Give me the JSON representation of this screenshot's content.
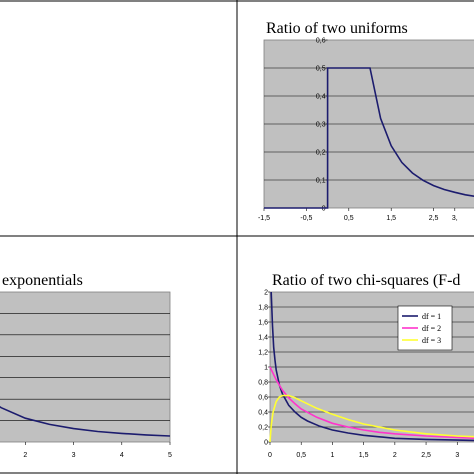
{
  "chart_data": [
    {
      "panel": "top-left",
      "type": "line",
      "title": "",
      "series": []
    },
    {
      "panel": "top-right",
      "type": "line",
      "title": "Ratio of two uniforms",
      "xlim": [
        -1.5,
        3.5
      ],
      "ylim": [
        0,
        0.6
      ],
      "x_ticks": [
        "-1,5",
        "-0,5",
        "0,5",
        "1,5",
        "2,5",
        "3,"
      ],
      "y_ticks": [
        "0",
        "0,1",
        "0,2",
        "0,3",
        "0,4",
        "0,5",
        "0,6"
      ],
      "grid": true,
      "series": [
        {
          "color": "#1c1c6e",
          "x": [
            -1.5,
            0,
            0,
            1,
            1.25,
            1.5,
            1.75,
            2,
            2.25,
            2.5,
            2.75,
            3,
            3.25,
            3.5
          ],
          "y": [
            0,
            0,
            0.5,
            0.5,
            0.32,
            0.222,
            0.163,
            0.125,
            0.099,
            0.08,
            0.066,
            0.056,
            0.047,
            0.041
          ]
        }
      ]
    },
    {
      "panel": "bottom-left",
      "type": "line",
      "title": "exponentials",
      "xlim": [
        1.35,
        5
      ],
      "ylim": [
        0,
        0.7
      ],
      "x_ticks": [
        "2",
        "3",
        "4",
        "5"
      ],
      "grid": true,
      "series": [
        {
          "color": "#1c1c6e",
          "x": [
            1.35,
            1.5,
            2,
            2.5,
            3,
            3.5,
            4,
            4.5,
            5
          ],
          "y": [
            0.18,
            0.16,
            0.111,
            0.082,
            0.0625,
            0.049,
            0.04,
            0.033,
            0.028
          ]
        }
      ]
    },
    {
      "panel": "bottom-right",
      "type": "line",
      "title": "Ratio of two chi-squares (F-d",
      "xlim": [
        0,
        3.3
      ],
      "ylim": [
        0,
        2
      ],
      "x_ticks": [
        "0",
        "0,5",
        "1",
        "1,5",
        "2",
        "2,5",
        "3"
      ],
      "y_ticks": [
        "0",
        "0,2",
        "0,4",
        "0,6",
        "0,8",
        "1",
        "1,2",
        "1,4",
        "1,6",
        "1,8",
        "2"
      ],
      "grid": true,
      "legend": "right",
      "series": [
        {
          "name": "df = 1",
          "color": "#1c1c6e",
          "x": [
            0.02,
            0.04,
            0.06,
            0.08,
            0.1,
            0.15,
            0.2,
            0.3,
            0.4,
            0.5,
            0.6,
            0.8,
            1,
            1.25,
            1.5,
            1.75,
            2,
            2.5,
            3,
            3.3
          ],
          "y": [
            2,
            1.55,
            1.26,
            1.09,
            0.96,
            0.76,
            0.64,
            0.49,
            0.4,
            0.33,
            0.28,
            0.21,
            0.16,
            0.12,
            0.09,
            0.07,
            0.05,
            0.035,
            0.025,
            0.02
          ]
        },
        {
          "name": "df = 2",
          "color": "#ff33cc",
          "x": [
            0,
            0.1,
            0.2,
            0.3,
            0.4,
            0.5,
            0.75,
            1,
            1.25,
            1.5,
            1.75,
            2,
            2.5,
            3,
            3.3
          ],
          "y": [
            1,
            0.83,
            0.69,
            0.59,
            0.51,
            0.44,
            0.33,
            0.25,
            0.2,
            0.16,
            0.13,
            0.11,
            0.08,
            0.06,
            0.05
          ]
        },
        {
          "name": "df = 3",
          "color": "#ffff33",
          "x": [
            0,
            0.02,
            0.05,
            0.1,
            0.15,
            0.2,
            0.3,
            0.4,
            0.5,
            0.75,
            1,
            1.25,
            1.5,
            2,
            2.5,
            3,
            3.3
          ],
          "y": [
            0,
            0.22,
            0.4,
            0.54,
            0.6,
            0.62,
            0.62,
            0.59,
            0.55,
            0.45,
            0.37,
            0.3,
            0.24,
            0.16,
            0.11,
            0.08,
            0.07
          ]
        }
      ]
    }
  ]
}
